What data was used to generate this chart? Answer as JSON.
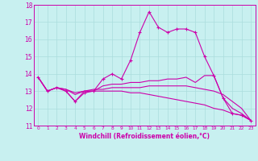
{
  "xlabel": "Windchill (Refroidissement éolien,°C)",
  "background_color": "#c8f0f0",
  "line_color": "#cc00aa",
  "grid_color": "#aadddd",
  "xlim": [
    -0.5,
    23.5
  ],
  "ylim": [
    11,
    18
  ],
  "yticks": [
    11,
    12,
    13,
    14,
    15,
    16,
    17,
    18
  ],
  "xticks": [
    0,
    1,
    2,
    3,
    4,
    5,
    6,
    7,
    8,
    9,
    10,
    11,
    12,
    13,
    14,
    15,
    16,
    17,
    18,
    19,
    20,
    21,
    22,
    23
  ],
  "lines": [
    {
      "x": [
        0,
        1,
        2,
        3,
        4,
        5,
        6,
        7,
        8,
        9,
        10,
        11,
        12,
        13,
        14,
        15,
        16,
        17,
        18,
        19,
        20,
        21,
        22,
        23
      ],
      "y": [
        13.8,
        13.0,
        13.2,
        13.0,
        12.4,
        12.9,
        13.0,
        13.7,
        14.0,
        13.7,
        14.8,
        16.4,
        17.6,
        16.7,
        16.4,
        16.6,
        16.6,
        16.4,
        15.0,
        13.9,
        12.6,
        11.7,
        11.6,
        11.3
      ],
      "marker": "+"
    },
    {
      "x": [
        0,
        1,
        2,
        3,
        4,
        5,
        6,
        7,
        8,
        9,
        10,
        11,
        12,
        13,
        14,
        15,
        16,
        17,
        18,
        19,
        20,
        21,
        22,
        23
      ],
      "y": [
        13.8,
        13.0,
        13.2,
        13.0,
        12.4,
        13.0,
        13.0,
        13.3,
        13.4,
        13.4,
        13.5,
        13.5,
        13.6,
        13.6,
        13.7,
        13.7,
        13.8,
        13.5,
        13.9,
        13.9,
        12.6,
        12.0,
        11.7,
        11.3
      ],
      "marker": null
    },
    {
      "x": [
        0,
        1,
        2,
        3,
        4,
        5,
        6,
        7,
        8,
        9,
        10,
        11,
        12,
        13,
        14,
        15,
        16,
        17,
        18,
        19,
        20,
        21,
        22,
        23
      ],
      "y": [
        13.8,
        13.0,
        13.2,
        13.1,
        12.9,
        13.0,
        13.1,
        13.1,
        13.2,
        13.2,
        13.2,
        13.2,
        13.3,
        13.3,
        13.3,
        13.3,
        13.3,
        13.2,
        13.1,
        13.0,
        12.8,
        12.4,
        12.0,
        11.3
      ],
      "marker": null
    },
    {
      "x": [
        0,
        1,
        2,
        3,
        4,
        5,
        6,
        7,
        8,
        9,
        10,
        11,
        12,
        13,
        14,
        15,
        16,
        17,
        18,
        19,
        20,
        21,
        22,
        23
      ],
      "y": [
        13.8,
        13.0,
        13.2,
        13.1,
        12.8,
        13.0,
        13.0,
        13.0,
        13.0,
        13.0,
        12.9,
        12.9,
        12.8,
        12.7,
        12.6,
        12.5,
        12.4,
        12.3,
        12.2,
        12.0,
        11.9,
        11.7,
        11.6,
        11.3
      ],
      "marker": null
    }
  ]
}
